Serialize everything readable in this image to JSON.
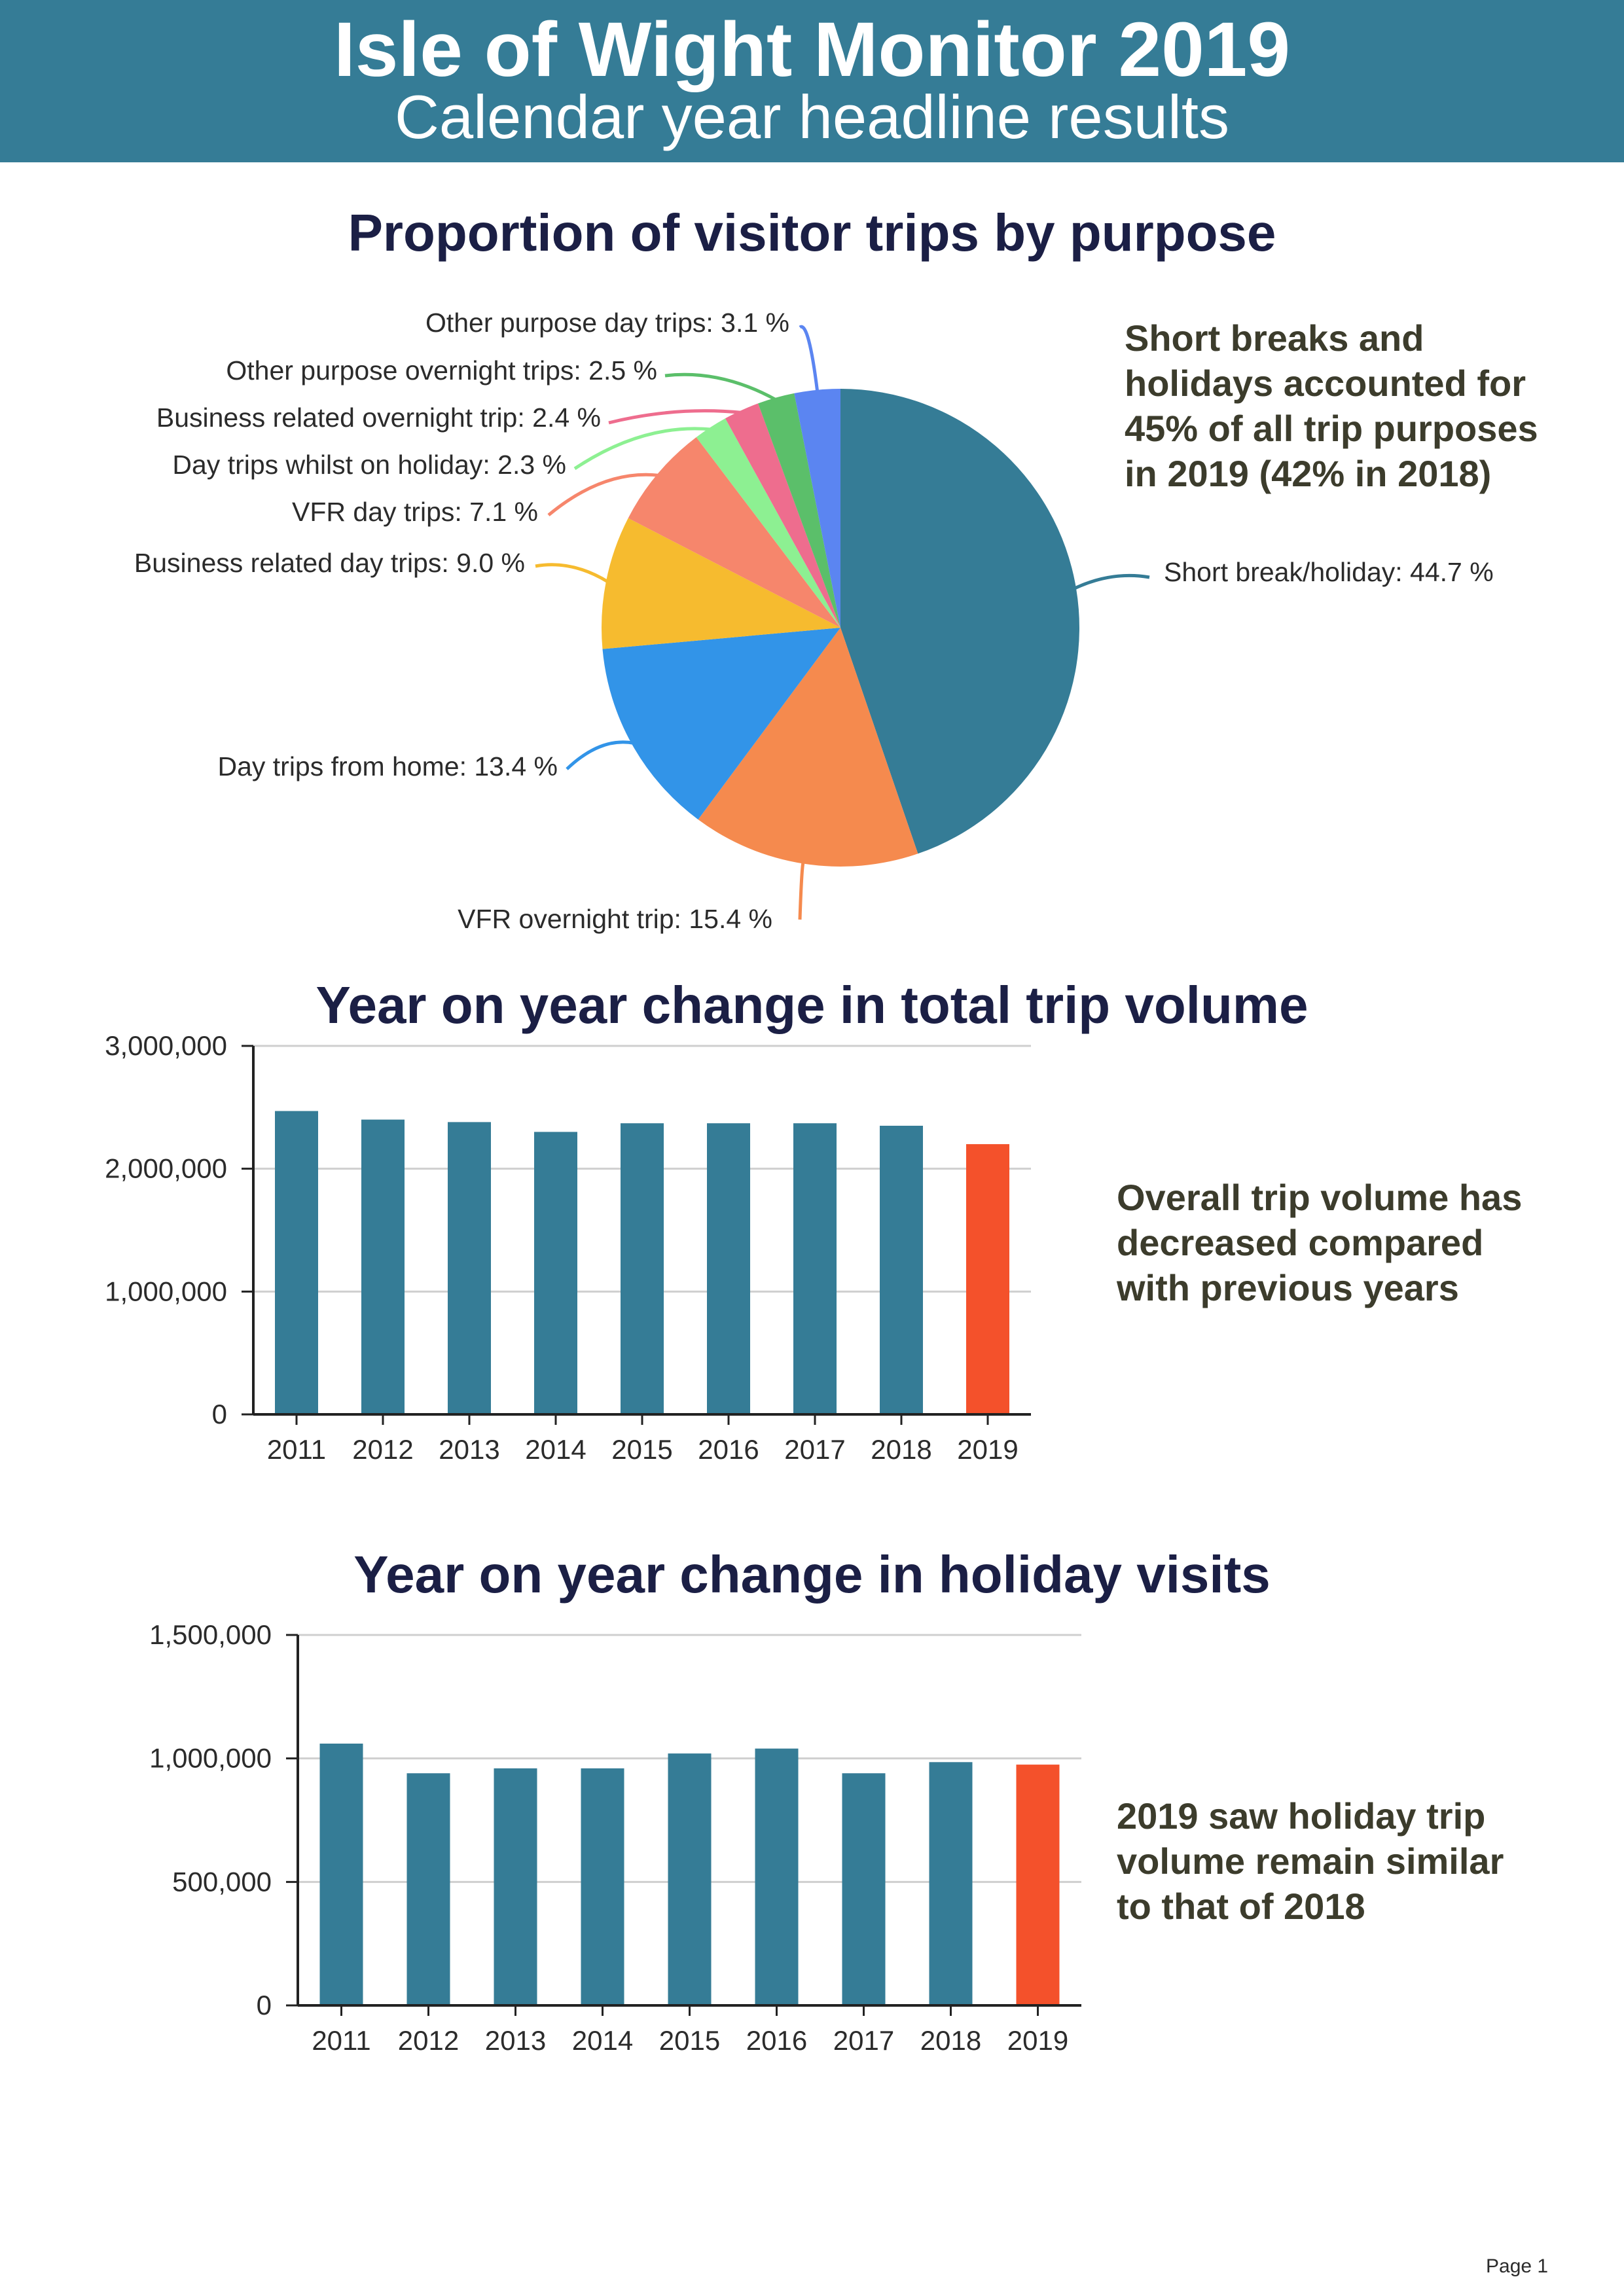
{
  "header": {
    "title": "Isle of Wight Monitor 2019",
    "subtitle": "Calendar year headline results"
  },
  "pie_section": {
    "title": "Proportion of visitor trips by purpose",
    "note": "Short breaks and holidays accounted for 45% of all trip purposes in 2019 (42% in 2018)"
  },
  "bar1_section": {
    "title": "Year on year change in total trip volume",
    "note": "Overall trip volume has decreased compared with previous years"
  },
  "bar2_section": {
    "title": "Year on year change in holiday visits",
    "note": "2019 saw holiday trip volume remain similar to that of 2018"
  },
  "page": {
    "label": "Page 1"
  },
  "colors": {
    "brand": "#357c96",
    "highlight": "#f4512b",
    "title_text": "#1b1f45",
    "note_text": "#3c3c2c"
  },
  "chart_data": [
    {
      "type": "pie",
      "title": "Proportion of visitor trips by purpose",
      "start": "12 o'clock, clockwise",
      "slices": [
        {
          "label": "Short break/holiday: 44.7 %",
          "value": 44.7,
          "color": "#357c96"
        },
        {
          "label": "VFR overnight trip: 15.4 %",
          "value": 15.4,
          "color": "#f58a4e"
        },
        {
          "label": "Day trips from home: 13.4 %",
          "value": 13.4,
          "color": "#3294e8"
        },
        {
          "label": "Business related day trips: 9.0 %",
          "value": 9.0,
          "color": "#f6bb2f"
        },
        {
          "label": "VFR day trips: 7.1 %",
          "value": 7.1,
          "color": "#f6866c"
        },
        {
          "label": "Day trips whilst on holiday: 2.3 %",
          "value": 2.3,
          "color": "#8df092"
        },
        {
          "label": "Business related overnight trip: 2.4 %",
          "value": 2.4,
          "color": "#ee6d8e"
        },
        {
          "label": "Other purpose overnight trips: 2.5 %",
          "value": 2.5,
          "color": "#5bbf6a"
        },
        {
          "label": "Other purpose day trips: 3.1 %",
          "value": 3.1,
          "color": "#5b85f1"
        }
      ]
    },
    {
      "type": "bar",
      "title": "Year on year change in total trip volume",
      "categories": [
        "2011",
        "2012",
        "2013",
        "2014",
        "2015",
        "2016",
        "2017",
        "2018",
        "2019"
      ],
      "values": [
        2470000,
        2400000,
        2380000,
        2300000,
        2370000,
        2370000,
        2370000,
        2350000,
        2200000
      ],
      "ylim": [
        0,
        3000000
      ],
      "yticks": [
        0,
        1000000,
        2000000,
        3000000
      ],
      "ytick_labels": [
        "0",
        "1,000,000",
        "2,000,000",
        "3,000,000"
      ],
      "grid": true,
      "bar_color": "#357c96",
      "highlight_color": "#f4512b",
      "highlight_index": 8
    },
    {
      "type": "bar",
      "title": "Year on year change in holiday visits",
      "categories": [
        "2011",
        "2012",
        "2013",
        "2014",
        "2015",
        "2016",
        "2017",
        "2018",
        "2019"
      ],
      "values": [
        1060000,
        940000,
        960000,
        960000,
        1020000,
        1040000,
        940000,
        985000,
        975000
      ],
      "ylim": [
        0,
        1500000
      ],
      "yticks": [
        0,
        500000,
        1000000,
        1500000
      ],
      "ytick_labels": [
        "0",
        "500,000",
        "1,000,000",
        "1,500,000"
      ],
      "grid": true,
      "bar_color": "#357c96",
      "highlight_color": "#f4512b",
      "highlight_index": 8
    }
  ]
}
